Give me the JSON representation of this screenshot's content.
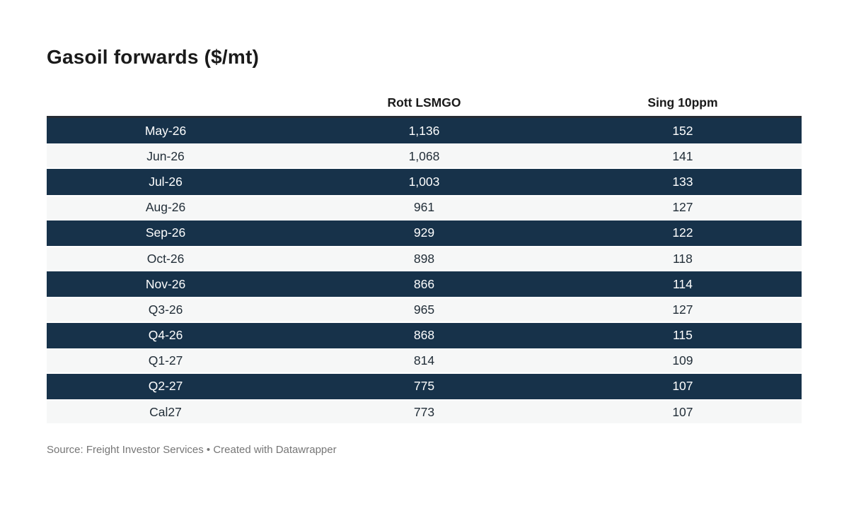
{
  "title": "Gasoil forwards ($/mt)",
  "table": {
    "columns": [
      "",
      "Rott LSMGO",
      "Sing 10ppm"
    ],
    "rows": [
      {
        "label": "May-26",
        "rott": "1,136",
        "sing": "152"
      },
      {
        "label": "Jun-26",
        "rott": "1,068",
        "sing": "141"
      },
      {
        "label": "Jul-26",
        "rott": "1,003",
        "sing": "133"
      },
      {
        "label": "Aug-26",
        "rott": "961",
        "sing": "127"
      },
      {
        "label": "Sep-26",
        "rott": "929",
        "sing": "122"
      },
      {
        "label": "Oct-26",
        "rott": "898",
        "sing": "118"
      },
      {
        "label": "Nov-26",
        "rott": "866",
        "sing": "114"
      },
      {
        "label": "Q3-26",
        "rott": "965",
        "sing": "127"
      },
      {
        "label": "Q4-26",
        "rott": "868",
        "sing": "115"
      },
      {
        "label": "Q1-27",
        "rott": "814",
        "sing": "109"
      },
      {
        "label": "Q2-27",
        "rott": "775",
        "sing": "107"
      },
      {
        "label": "Cal27",
        "rott": "773",
        "sing": "107"
      }
    ]
  },
  "footer": {
    "text": "Source: Freight Investor Services • Created with Datawrapper"
  },
  "colors": {
    "row_dark": "#17324a",
    "row_light": "#f6f7f7",
    "table_top_border": "#262c34",
    "title_text": "#1a1a1a",
    "dark_row_text": "#ffffff",
    "light_row_text": "#222e38",
    "footer_text": "#767676"
  },
  "chart_data": {
    "type": "table",
    "title": "Gasoil forwards ($/mt)",
    "columns": [
      "",
      "Rott LSMGO",
      "Sing 10ppm"
    ],
    "categories": [
      "May-26",
      "Jun-26",
      "Jul-26",
      "Aug-26",
      "Sep-26",
      "Oct-26",
      "Nov-26",
      "Q3-26",
      "Q4-26",
      "Q1-27",
      "Q2-27",
      "Cal27"
    ],
    "series": [
      {
        "name": "Rott LSMGO",
        "values": [
          1136,
          1068,
          1003,
          961,
          929,
          898,
          866,
          965,
          868,
          814,
          775,
          773
        ]
      },
      {
        "name": "Sing 10ppm",
        "values": [
          152,
          141,
          133,
          127,
          122,
          118,
          114,
          127,
          115,
          109,
          107,
          107
        ]
      }
    ],
    "source": "Freight Investor Services",
    "attribution": "Created with Datawrapper",
    "layout": "alternating row stripes, dark navy odd rows, all cells center-aligned"
  }
}
